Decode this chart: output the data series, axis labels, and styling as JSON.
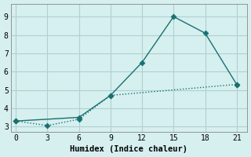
{
  "line1_x": [
    0,
    6,
    9,
    12,
    15,
    18,
    21
  ],
  "line1_y": [
    3.3,
    3.5,
    4.7,
    6.5,
    9.0,
    8.1,
    5.3
  ],
  "line2_x": [
    0,
    3,
    6,
    9,
    21
  ],
  "line2_y": [
    3.3,
    3.05,
    3.4,
    4.7,
    5.3
  ],
  "line_color": "#1a7070",
  "bg_color": "#d6efef",
  "grid_color": "#b0d0d0",
  "xlabel": "Humidex (Indice chaleur)",
  "xlim": [
    -0.5,
    22
  ],
  "ylim": [
    2.7,
    9.7
  ],
  "xticks": [
    0,
    3,
    6,
    9,
    12,
    15,
    18,
    21
  ],
  "yticks": [
    3,
    4,
    5,
    6,
    7,
    8,
    9
  ],
  "markersize": 3.5,
  "linewidth": 1.0
}
